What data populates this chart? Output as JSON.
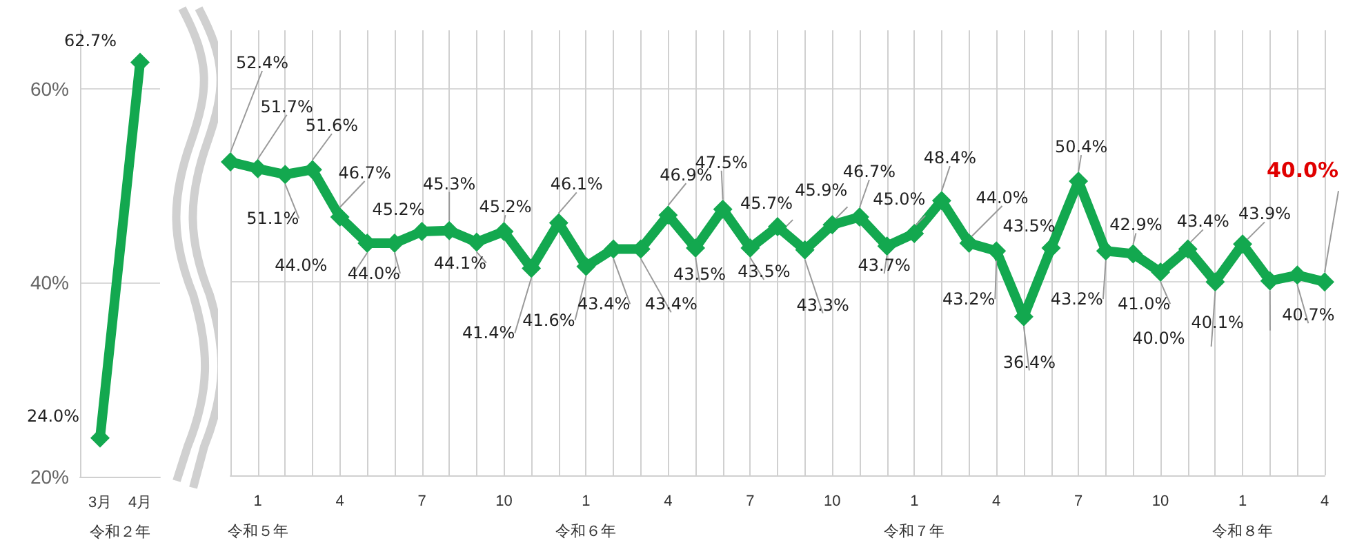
{
  "chart_data": [
    {
      "type": "line",
      "categories": [
        "3月",
        "4月"
      ],
      "xlabel": "令和２年",
      "color": "#13a84f",
      "values": [
        24.0,
        62.7
      ],
      "value_labels": [
        "24.0%",
        "62.7%"
      ],
      "ylim": [
        20,
        66
      ],
      "yticks": [
        {
          "value": 20,
          "label": "20%"
        },
        {
          "value": 40,
          "label": "40%"
        },
        {
          "value": 60,
          "label": "60%"
        }
      ],
      "grid": "y",
      "marker": "diamond",
      "line_style": "solid"
    },
    {
      "type": "line",
      "categories": [
        null,
        "1\n令和５年",
        null,
        null,
        "4",
        null,
        null,
        "7",
        null,
        null,
        "10",
        null,
        null,
        "1\n令和６年",
        null,
        null,
        "4",
        null,
        null,
        "7",
        null,
        null,
        "10",
        null,
        null,
        "1\n令和７年",
        null,
        null,
        "4",
        null,
        null,
        "7",
        null,
        null,
        "10",
        null,
        null,
        "1\n令和８年",
        null,
        null,
        "4"
      ],
      "color": "#13a84f",
      "values": [
        52.4,
        51.7,
        51.1,
        51.6,
        46.7,
        44.0,
        44.0,
        45.2,
        45.3,
        44.1,
        45.2,
        41.4,
        46.1,
        41.6,
        43.4,
        43.4,
        46.9,
        43.5,
        47.5,
        43.5,
        45.7,
        43.3,
        45.9,
        46.7,
        43.7,
        45.0,
        48.4,
        44.0,
        43.2,
        36.4,
        43.5,
        50.4,
        43.2,
        42.9,
        41.0,
        43.4,
        40.0,
        43.9,
        40.1,
        40.7,
        40.0
      ],
      "value_labels": [
        "52.4%",
        "51.7%",
        "51.1%",
        "51.6%",
        "46.7%",
        "44.0%",
        "44.0%",
        "45.2%",
        "45.3%",
        "44.1%",
        "45.2%",
        "41.4%",
        "46.1%",
        "41.6%",
        "43.4%",
        "43.4%",
        "46.9%",
        "43.5%",
        "47.5%",
        "43.5%",
        "45.7%",
        "43.3%",
        "45.9%",
        "46.7%",
        "43.7%",
        "45.0%",
        "48.4%",
        "44.0%",
        "43.2%",
        "36.4%",
        "43.5%",
        "50.4%",
        "43.2%",
        "42.9%",
        "41.0%",
        "43.4%",
        "40.0%",
        "43.9%",
        "40.1%",
        "40.7%",
        "40.0%"
      ],
      "ylim": [
        20,
        66
      ],
      "yticks": [
        20,
        40,
        60
      ],
      "grid": true,
      "tick_labels": "x",
      "marker": "diamond",
      "line_style": "solid"
    }
  ]
}
